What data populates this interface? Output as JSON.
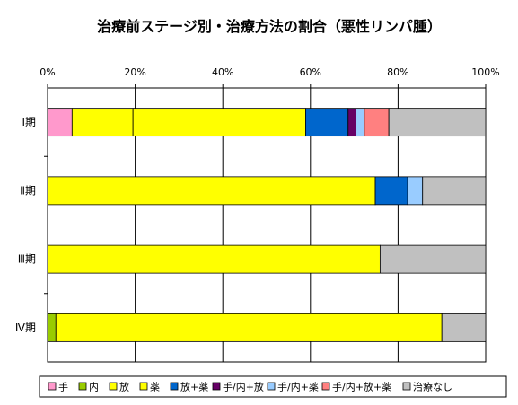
{
  "chart_data": {
    "type": "bar",
    "orientation": "horizontal",
    "stacked": "percent",
    "title": "治療前ステージ別・治療方法の割合（悪性リンパ腫）",
    "xlabel": "",
    "ylabel": "",
    "xlim": [
      0,
      100
    ],
    "x_tick_labels": [
      "0%",
      "20%",
      "40%",
      "60%",
      "80%",
      "100%"
    ],
    "x_axis_position": "top",
    "grid": true,
    "legend_position": "bottom",
    "categories": [
      "Ⅰ期",
      "Ⅱ期",
      "Ⅲ期",
      "Ⅳ期"
    ],
    "series": [
      {
        "name": "手",
        "color": "#FF99CC",
        "values": [
          5.6,
          0,
          0,
          0
        ]
      },
      {
        "name": "内",
        "color": "#99CC00",
        "values": [
          0,
          0,
          0,
          1.9
        ]
      },
      {
        "name": "放",
        "color": "#FFFF00",
        "values": [
          13.9,
          0,
          0,
          0
        ]
      },
      {
        "name": "薬",
        "color": "#FFFF00",
        "values": [
          39.4,
          74.8,
          75.9,
          88.1
        ]
      },
      {
        "name": "放+薬",
        "color": "#0066CC",
        "values": [
          9.7,
          7.4,
          0,
          0
        ]
      },
      {
        "name": "手/内+放",
        "color": "#660066",
        "values": [
          1.8,
          0,
          0,
          0
        ]
      },
      {
        "name": "手/内+薬",
        "color": "#99CCFF",
        "values": [
          1.9,
          3.4,
          0,
          0
        ]
      },
      {
        "name": "手/内+放+薬",
        "color": "#FF8080",
        "values": [
          5.6,
          0,
          0,
          0
        ]
      },
      {
        "name": "治療なし",
        "color": "#C0C0C0",
        "values": [
          22.1,
          14.4,
          24.1,
          10.0
        ]
      }
    ]
  }
}
